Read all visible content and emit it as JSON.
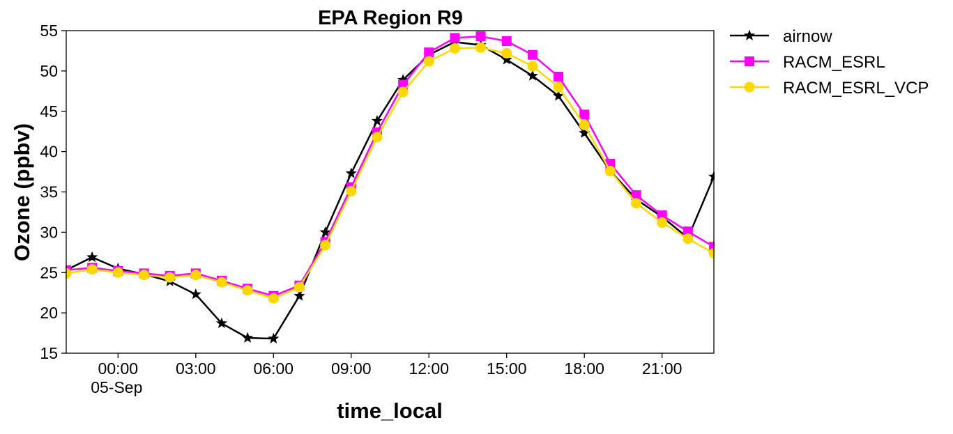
{
  "chart_data": {
    "type": "line",
    "title": "EPA Region R9",
    "xlabel": "time_local",
    "ylabel": "Ozone (ppbv)",
    "xlim": [
      "2023-09-04 22:00",
      "2023-09-05 23:00"
    ],
    "ylim": [
      15,
      55
    ],
    "y_ticks": [
      15,
      20,
      25,
      30,
      35,
      40,
      45,
      50,
      55
    ],
    "x_ticks": [
      {
        "x": "2023-09-05 00:00",
        "label": "00:00",
        "sublabel": "05-Sep"
      },
      {
        "x": "2023-09-05 03:00",
        "label": "03:00",
        "sublabel": ""
      },
      {
        "x": "2023-09-05 06:00",
        "label": "06:00",
        "sublabel": ""
      },
      {
        "x": "2023-09-05 09:00",
        "label": "09:00",
        "sublabel": ""
      },
      {
        "x": "2023-09-05 12:00",
        "label": "12:00",
        "sublabel": ""
      },
      {
        "x": "2023-09-05 15:00",
        "label": "15:00",
        "sublabel": ""
      },
      {
        "x": "2023-09-05 18:00",
        "label": "18:00",
        "sublabel": ""
      },
      {
        "x": "2023-09-05 21:00",
        "label": "21:00",
        "sublabel": ""
      }
    ],
    "x": [
      "2023-09-04 22:00",
      "2023-09-04 23:00",
      "2023-09-05 00:00",
      "2023-09-05 01:00",
      "2023-09-05 02:00",
      "2023-09-05 03:00",
      "2023-09-05 04:00",
      "2023-09-05 05:00",
      "2023-09-05 06:00",
      "2023-09-05 07:00",
      "2023-09-05 08:00",
      "2023-09-05 09:00",
      "2023-09-05 10:00",
      "2023-09-05 11:00",
      "2023-09-05 12:00",
      "2023-09-05 13:00",
      "2023-09-05 14:00",
      "2023-09-05 15:00",
      "2023-09-05 16:00",
      "2023-09-05 17:00",
      "2023-09-05 18:00",
      "2023-09-05 19:00",
      "2023-09-05 20:00",
      "2023-09-05 21:00",
      "2023-09-05 22:00",
      "2023-09-05 23:00"
    ],
    "grid": false,
    "legend_position": "outside top-right",
    "series": [
      {
        "name": "airnow",
        "color": "#000000",
        "marker": "star",
        "values": [
          25.3,
          26.9,
          25.5,
          24.8,
          23.9,
          22.3,
          18.7,
          16.9,
          16.8,
          22.1,
          30.0,
          37.3,
          43.8,
          48.9,
          52.0,
          53.6,
          53.2,
          51.4,
          49.4,
          46.9,
          42.3,
          37.6,
          34.1,
          31.9,
          29.3,
          36.9
        ]
      },
      {
        "name": "RACM_ESRL",
        "color": "#ff00ff",
        "marker": "square",
        "values": [
          25.3,
          25.6,
          25.2,
          24.9,
          24.6,
          24.9,
          24.0,
          23.0,
          22.1,
          23.4,
          28.8,
          35.6,
          42.4,
          48.3,
          52.3,
          54.1,
          54.3,
          53.7,
          52.0,
          49.3,
          44.6,
          38.5,
          34.6,
          32.1,
          30.1,
          28.2
        ]
      },
      {
        "name": "RACM_ESRL_VCP",
        "color": "#ffd700",
        "marker": "circle",
        "values": [
          24.9,
          25.4,
          25.0,
          24.7,
          24.4,
          24.7,
          23.8,
          22.8,
          21.8,
          23.2,
          28.4,
          35.1,
          41.8,
          47.4,
          51.2,
          52.8,
          52.9,
          52.2,
          50.6,
          48.0,
          43.3,
          37.6,
          33.6,
          31.2,
          29.2,
          27.4
        ]
      }
    ]
  }
}
